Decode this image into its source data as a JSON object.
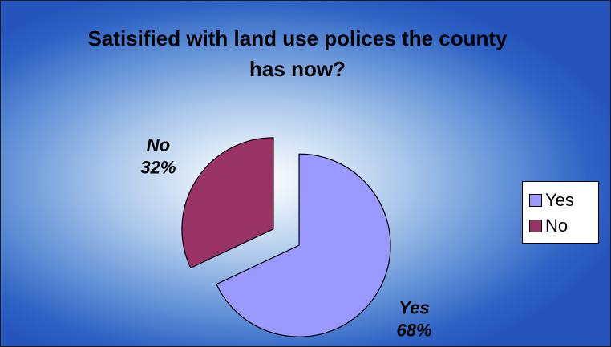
{
  "chart_data": {
    "type": "pie",
    "title": "Satisified with land use polices the county has now?",
    "categories": [
      "Yes",
      "No"
    ],
    "values": [
      68,
      32
    ],
    "value_labels": [
      "68%",
      "32%"
    ],
    "colors": [
      "#9999ff",
      "#993366"
    ],
    "exploded": true,
    "legend": {
      "placement": "right",
      "entries": [
        "Yes",
        "No"
      ]
    }
  }
}
